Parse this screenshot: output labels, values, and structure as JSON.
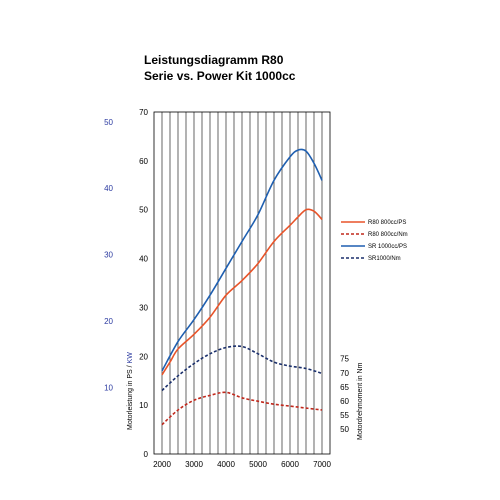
{
  "chart_data": {
    "type": "line",
    "title": "Leistungsdiagramm R80",
    "subtitle": "Serie vs. Power Kit 1000cc",
    "x_ticks": [
      2000,
      3000,
      4000,
      5000,
      6000,
      7000
    ],
    "xlim": [
      1750,
      7250
    ],
    "ylim": [
      0,
      70
    ],
    "y_ticks": [
      0,
      10,
      20,
      30,
      40,
      50,
      60,
      70
    ],
    "y_kw_ticks": [
      10,
      20,
      30,
      40,
      50
    ],
    "y_nm_ticks": [
      50,
      55,
      60,
      65,
      70,
      75
    ],
    "ylabel_left": "Motorleistung in PS / KW",
    "ylabel_left_ps": "Motorleistung in PS /",
    "ylabel_left_kw": " KW",
    "ylabel_right": "Motordrehmoment in Nm",
    "grid": "vertical",
    "legend_position": "right",
    "series": [
      {
        "name": "R80 800cc/PS",
        "color": "#e8542a",
        "dash": "solid",
        "x": [
          2000,
          2250,
          2500,
          3000,
          3500,
          4000,
          4500,
          5000,
          5500,
          6000,
          6250,
          6500,
          6750,
          7000
        ],
        "y": [
          16.2,
          18.8,
          21.5,
          24.5,
          28.0,
          32.5,
          35.5,
          39.0,
          43.5,
          46.8,
          48.5,
          50.0,
          49.7,
          48.0
        ]
      },
      {
        "name": "R80 800cc/Nm",
        "color": "#c0281c",
        "dash": "dashed",
        "x": [
          2000,
          2500,
          3000,
          3500,
          4000,
          4500,
          5000,
          5500,
          6000,
          6500,
          7000
        ],
        "y": [
          6.0,
          9.0,
          11.0,
          12.0,
          12.6,
          11.5,
          10.8,
          10.2,
          9.8,
          9.4,
          9.0
        ]
      },
      {
        "name": "SR 1000cc/PS",
        "color": "#1f5fb0",
        "dash": "solid",
        "x": [
          2000,
          2500,
          3000,
          3500,
          4000,
          4500,
          5000,
          5500,
          6000,
          6250,
          6500,
          6750,
          7000
        ],
        "y": [
          17.0,
          23.0,
          27.5,
          32.5,
          38.0,
          43.5,
          49.0,
          56.0,
          60.8,
          62.2,
          62.0,
          59.5,
          56.0
        ]
      },
      {
        "name": "SR1000/Nm",
        "color": "#1a2f6b",
        "dash": "dashed",
        "x": [
          2000,
          2500,
          3000,
          3500,
          4000,
          4500,
          5000,
          5500,
          6000,
          6500,
          7000
        ],
        "y": [
          13.0,
          16.0,
          18.5,
          20.5,
          21.8,
          22.0,
          20.5,
          18.8,
          18.0,
          17.5,
          16.5
        ]
      }
    ]
  }
}
